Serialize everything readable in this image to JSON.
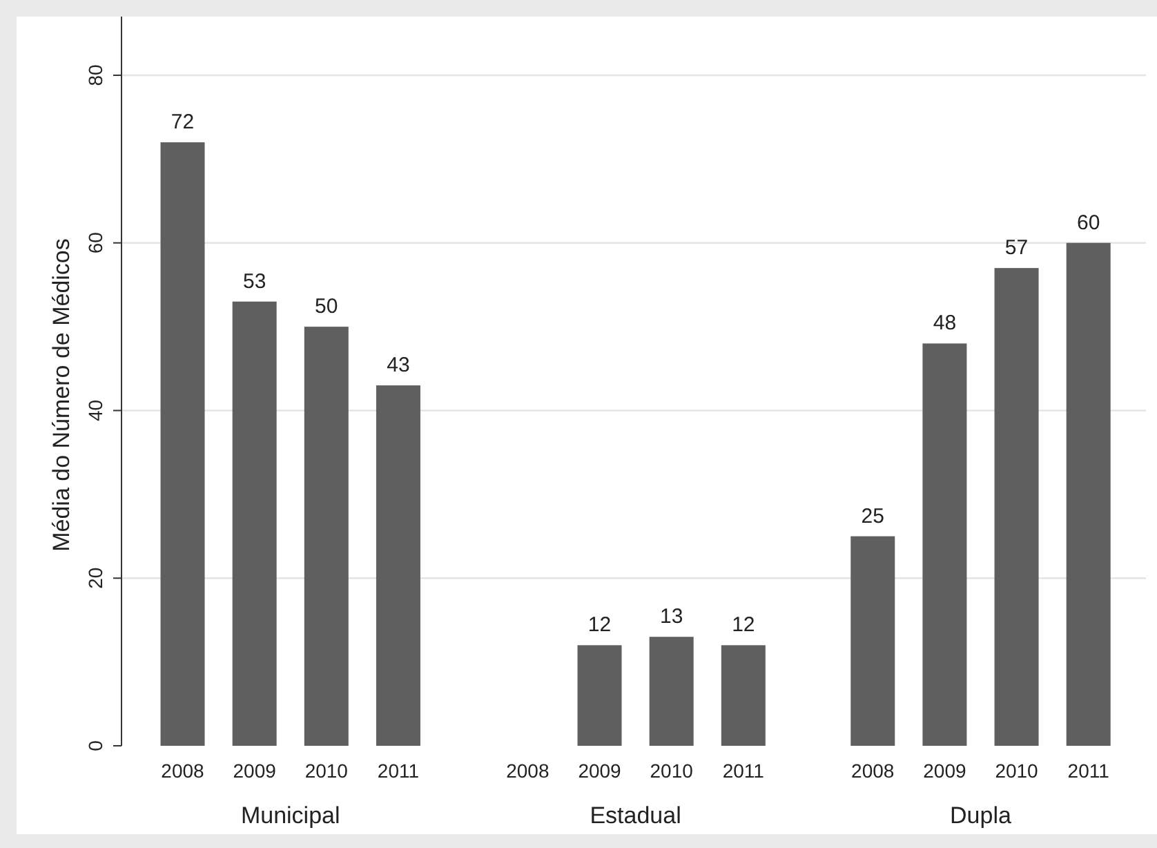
{
  "chart_data": {
    "type": "bar",
    "ylabel": "Média do Número de Médicos",
    "categories": [
      "2008",
      "2009",
      "2010",
      "2011",
      "2008",
      "2009",
      "2010",
      "2011",
      "2008",
      "2009",
      "2010",
      "2011"
    ],
    "values": [
      72,
      53,
      50,
      43,
      null,
      12,
      13,
      12,
      25,
      48,
      57,
      60
    ],
    "color": "#5f5f5f",
    "data_labels": true,
    "annotations": [
      "Municipal",
      "Estadual",
      "Dupla"
    ],
    "ylim": [
      0,
      87
    ],
    "yticks": [
      0,
      20,
      40,
      60,
      80
    ],
    "grid": "y"
  }
}
